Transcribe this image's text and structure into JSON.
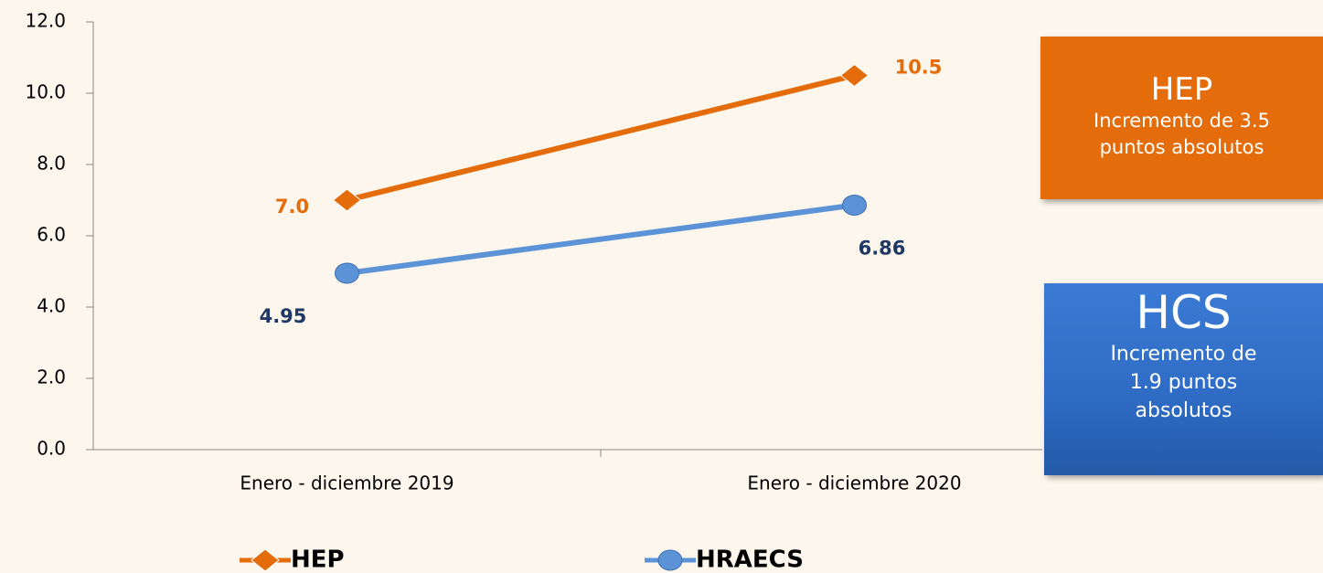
{
  "chart_data": {
    "type": "line",
    "categories": [
      "Enero - diciembre 2019",
      "Enero - diciembre 2020"
    ],
    "series": [
      {
        "name": "HEP",
        "color": "#e46c0a",
        "label_color": "#e46c0a",
        "marker": "diamond",
        "values": [
          7.0,
          10.5
        ],
        "value_labels": [
          "7.0",
          "10.5"
        ]
      },
      {
        "name": "HRAECS",
        "color": "#5b93d6",
        "label_color": "#1f3864",
        "marker": "circle",
        "values": [
          4.95,
          6.86
        ]
      }
    ],
    "ylim": [
      0,
      12
    ],
    "yticks": [
      {
        "value": 0,
        "label": "0.0"
      },
      {
        "value": 2,
        "label": "2.0"
      },
      {
        "value": 4,
        "label": "4.0"
      },
      {
        "value": 6,
        "label": "6.0"
      },
      {
        "value": 8,
        "label": "8.0"
      },
      {
        "value": 10,
        "label": "10.0"
      },
      {
        "value": 12,
        "label": "12.0"
      }
    ],
    "annotations": [
      {
        "title": "HEP",
        "text": "Incremento de 3.5 puntos absolutos",
        "color": "#e46c0a"
      },
      {
        "title": "HCS",
        "text": "Incremento de 1.9 puntos absolutos",
        "color": "#2e6bc4"
      }
    ]
  }
}
